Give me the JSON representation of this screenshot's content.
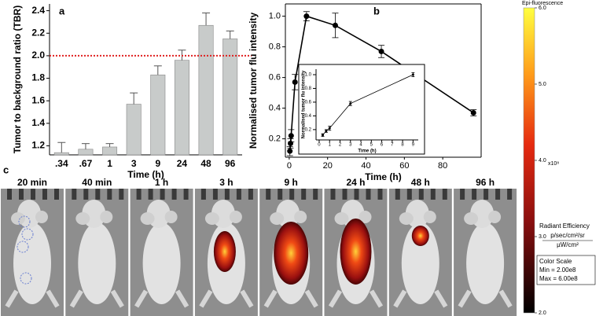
{
  "chart_data": [
    {
      "type": "bar",
      "panel": "a",
      "categories": [
        ".34",
        ".67",
        "1",
        "3",
        "9",
        "24",
        "48",
        "96"
      ],
      "values": [
        1.14,
        1.17,
        1.19,
        1.57,
        1.83,
        1.96,
        2.27,
        2.15
      ],
      "errors": [
        0.09,
        0.05,
        0.03,
        0.1,
        0.08,
        0.09,
        0.11,
        0.07
      ],
      "color": "#c8cbca",
      "xlabel": "Time (h)",
      "ylabel": "Tumor to background ratio (TBR)",
      "ylim": [
        1.12,
        2.46
      ],
      "yticks": [
        1.2,
        1.4,
        1.6,
        1.8,
        {
          "value": 2,
          "label": "2.0"
        },
        2.2,
        2.4
      ],
      "hline": 2,
      "hline_color": "#e02020"
    },
    {
      "type": "line",
      "panel": "b",
      "x": [
        0.34,
        0.67,
        1,
        3,
        9,
        24,
        48,
        96
      ],
      "values": [
        0.12,
        0.17,
        0.22,
        0.57,
        1.0,
        0.94,
        0.77,
        0.37
      ],
      "errors": [
        0.03,
        0.03,
        0.04,
        0.05,
        0.03,
        0.08,
        0.04,
        0.02
      ],
      "color": "#000000",
      "xlabel": "Time (h)",
      "ylabel": "Normalised tumor flu intensity",
      "xlim": [
        -2,
        100
      ],
      "xticks": [
        0,
        20,
        40,
        60,
        80
      ],
      "ylim": [
        0.08,
        1.08
      ],
      "yticks": [
        0.2,
        0.4,
        0.6,
        0.8,
        {
          "value": 1,
          "label": "1.0"
        }
      ]
    },
    {
      "type": "line",
      "x": [
        0.34,
        0.67,
        1,
        3,
        9
      ],
      "values": [
        0.12,
        0.18,
        0.22,
        0.58,
        1.0
      ],
      "errors": [
        0.02,
        0.02,
        0.03,
        0.03,
        0.03
      ],
      "color": "#000000",
      "xlabel": "Time (h)",
      "ylabel": "Normalised tumor flu intensity",
      "xlim": [
        -0.3,
        9.5
      ],
      "xticks": [
        0,
        1,
        2,
        3,
        4,
        5,
        6,
        7,
        8,
        9
      ],
      "ylim": [
        0.05,
        1.08
      ],
      "yticks": [
        0.2,
        0.4,
        0.6,
        0.8,
        {
          "value": 1,
          "label": "1.0"
        }
      ]
    }
  ],
  "panel_c": {
    "label": "c",
    "frames": [
      "20 min",
      "40 min",
      "1 h",
      "3 h",
      "9 h",
      "24 h",
      "48 h",
      "96 h"
    ]
  },
  "colorbar": {
    "title": "Epi-fluorescence",
    "exponent": "x10⁸",
    "lim": [
      2,
      6
    ],
    "ticks": [
      {
        "value": 6,
        "label": "6.0"
      },
      {
        "value": 5,
        "label": "5.0"
      },
      {
        "value": 4,
        "label": "4.0"
      },
      {
        "value": 3,
        "label": "3.0"
      },
      {
        "value": 2,
        "label": "2.0"
      }
    ],
    "quantity": "Radiant Efficiency",
    "numerator": "p/sec/cm²/sr",
    "denominator": "µW/cm²",
    "scale_title": "Color Scale",
    "min_text": "Min = 2.00e8",
    "max_text": "Max = 6.00e8"
  }
}
